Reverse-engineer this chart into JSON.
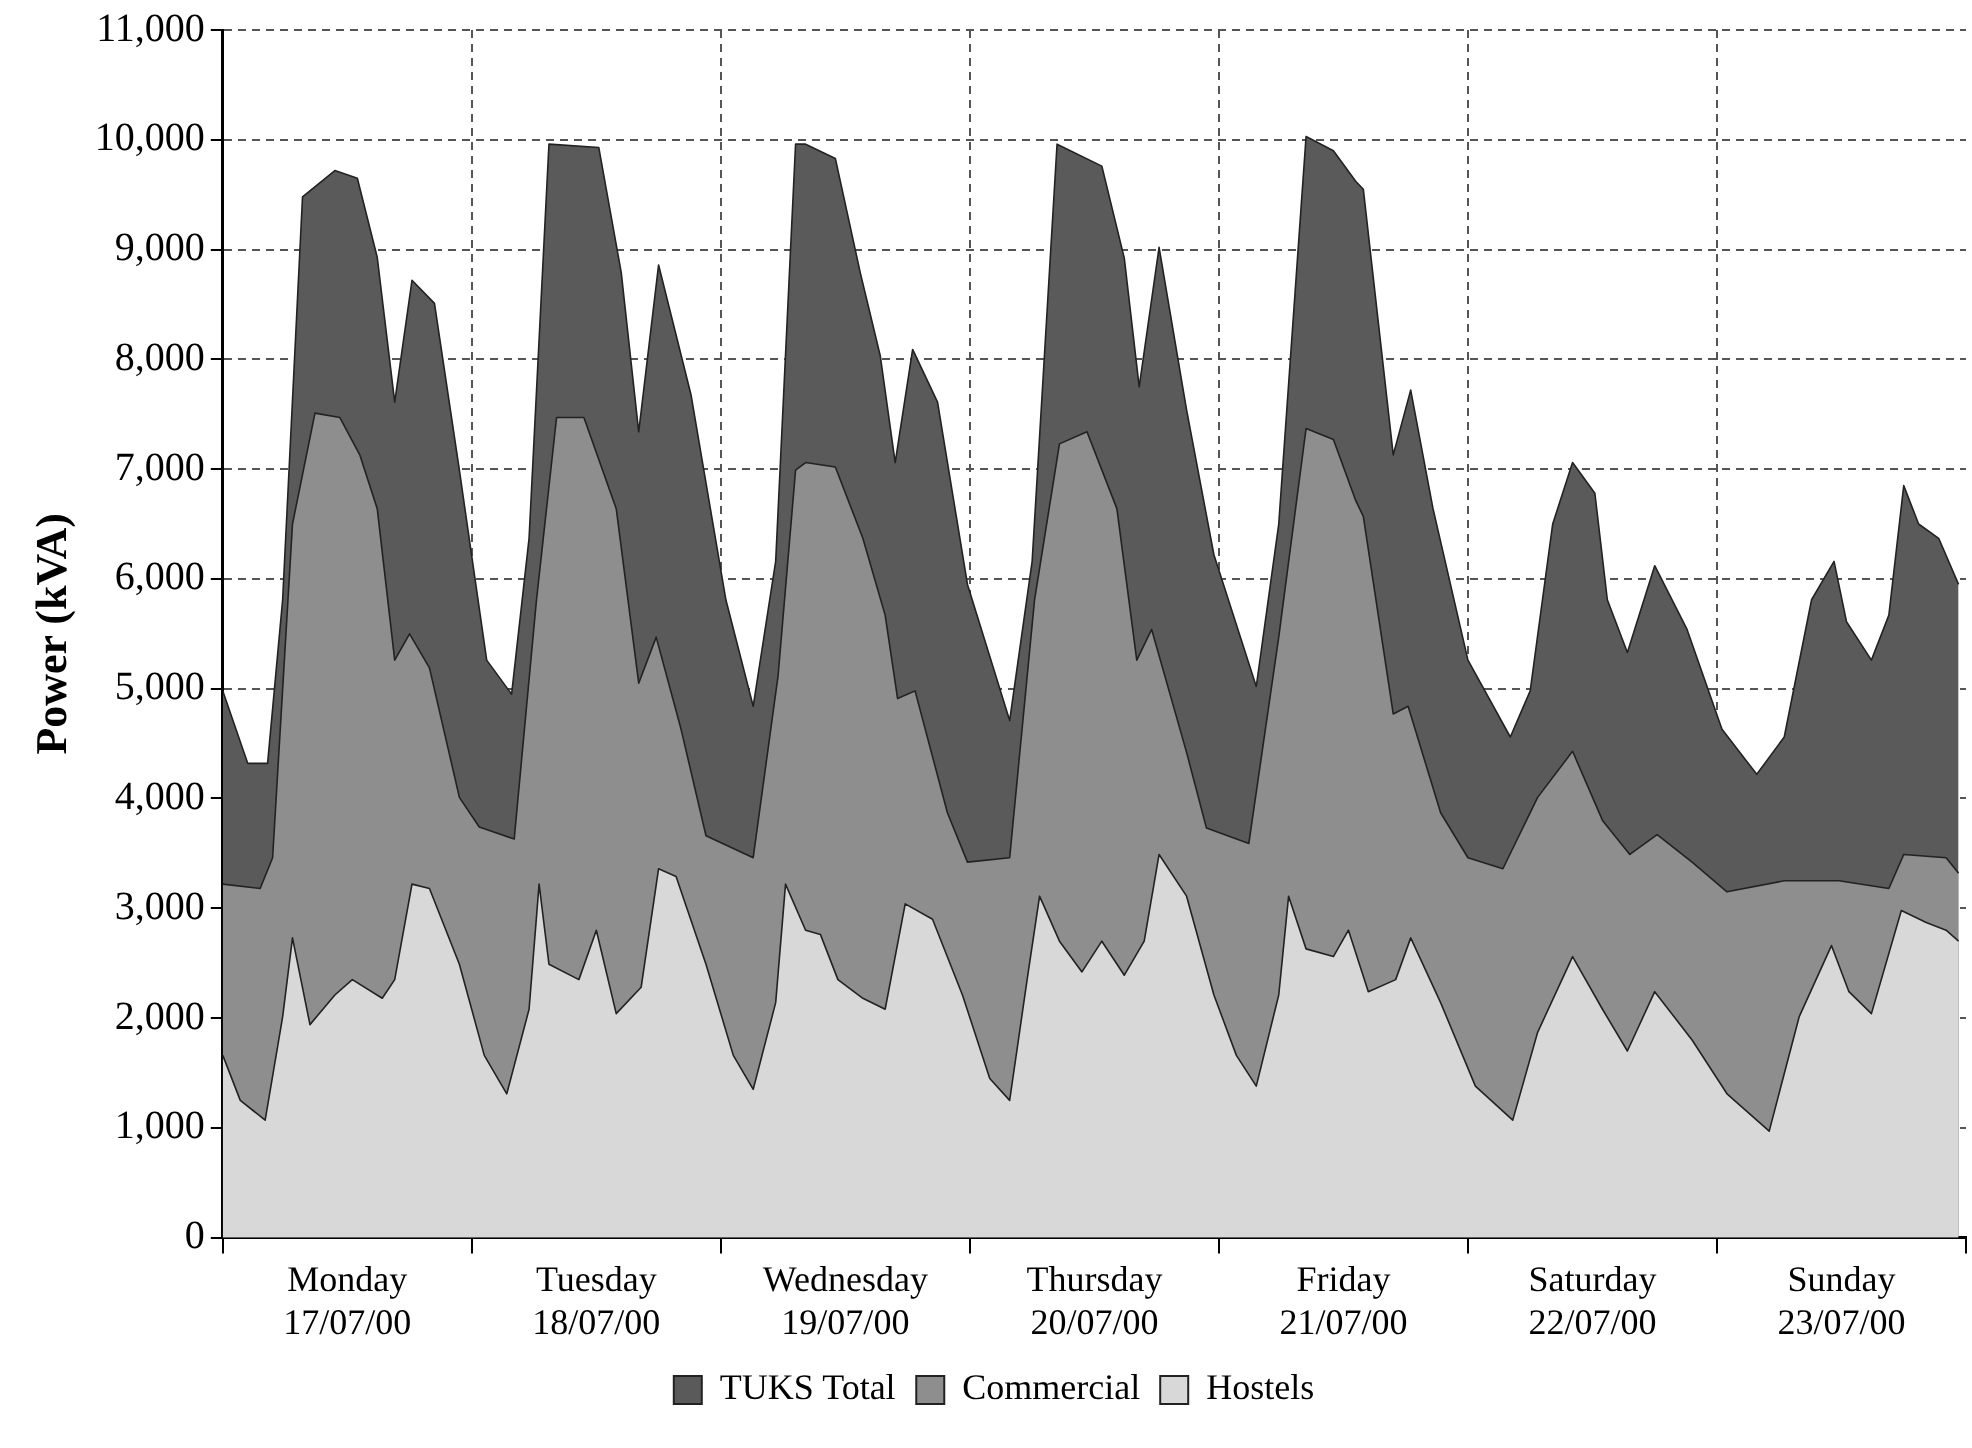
{
  "chart_data": {
    "type": "area",
    "ylabel": "Power (kVA)",
    "xlim": [
      "2000-07-17T00:00",
      "2000-07-24T00:00"
    ],
    "xticks": [
      {
        "value": "2000-07-17T00:00",
        "label": null
      },
      {
        "value": "2000-07-17T12:00",
        "label": "Monday 17/07/00"
      },
      {
        "value": "2000-07-18T00:00",
        "label": null
      },
      {
        "value": "2000-07-18T12:00",
        "label": "Tuesday 18/07/00"
      },
      {
        "value": "2000-07-19T00:00",
        "label": null
      },
      {
        "value": "2000-07-19T12:00",
        "label": "Wednesday 19/07/00"
      },
      {
        "value": "2000-07-20T00:00",
        "label": null
      },
      {
        "value": "2000-07-20T12:00",
        "label": "Thursday 20/07/00"
      },
      {
        "value": "2000-07-21T00:00",
        "label": null
      },
      {
        "value": "2000-07-21T12:00",
        "label": "Friday 21/07/00"
      },
      {
        "value": "2000-07-22T00:00",
        "label": null
      },
      {
        "value": "2000-07-22T12:00",
        "label": "Saturday 22/07/00"
      },
      {
        "value": "2000-07-23T00:00",
        "label": null
      },
      {
        "value": "2000-07-23T12:00",
        "label": "Sunday 23/07/00"
      },
      {
        "value": "2000-07-24T00:00",
        "label": null
      }
    ],
    "ylim": [
      0,
      11000
    ],
    "yticks": [
      {
        "value": 0,
        "label": "0"
      },
      {
        "value": 1000,
        "label": "1,000"
      },
      {
        "value": 2000,
        "label": "2,000"
      },
      {
        "value": 3000,
        "label": "3,000"
      },
      {
        "value": 4000,
        "label": "4,000"
      },
      {
        "value": 5000,
        "label": "5,000"
      },
      {
        "value": 6000,
        "label": "6,000"
      },
      {
        "value": 7000,
        "label": "7,000"
      },
      {
        "value": 8000,
        "label": "8,000"
      },
      {
        "value": 9000,
        "label": "9,000"
      },
      {
        "value": 10000,
        "label": "10,000"
      },
      {
        "value": 11000,
        "label": "11,000"
      }
    ],
    "grid": true,
    "legend": "bottom",
    "series": [
      {
        "name": "TUKS Total",
        "color": "#5a5a5a",
        "x": [
          "2000-07-17T00:00",
          "2000-07-17T02:24",
          "2000-07-17T04:19",
          "2000-07-17T05:46",
          "2000-07-17T07:41",
          "2000-07-17T10:48",
          "2000-07-17T12:58",
          "2000-07-17T14:53",
          "2000-07-17T16:34",
          "2000-07-17T18:14",
          "2000-07-17T20:24",
          "2000-07-17T22:48",
          "2000-07-18T01:26",
          "2000-07-18T03:50",
          "2000-07-18T05:31",
          "2000-07-18T07:26",
          "2000-07-18T12:14",
          "2000-07-18T14:24",
          "2000-07-18T16:05",
          "2000-07-18T18:00",
          "2000-07-18T21:07",
          "2000-07-19T00:29",
          "2000-07-19T03:07",
          "2000-07-19T05:17",
          "2000-07-19T07:12",
          "2000-07-19T08:10",
          "2000-07-19T11:02",
          "2000-07-19T13:26",
          "2000-07-19T15:22",
          "2000-07-19T16:48",
          "2000-07-19T18:29",
          "2000-07-19T20:53",
          "2000-07-19T23:46",
          "2000-07-20T03:50",
          "2000-07-20T06:00",
          "2000-07-20T08:24",
          "2000-07-20T12:43",
          "2000-07-20T14:53",
          "2000-07-20T16:19",
          "2000-07-20T18:14",
          "2000-07-20T20:53",
          "2000-07-20T23:31",
          "2000-07-21T03:36",
          "2000-07-21T05:46",
          "2000-07-21T08:24",
          "2000-07-21T11:02",
          "2000-07-21T13:12",
          "2000-07-21T13:55",
          "2000-07-21T16:48",
          "2000-07-21T18:29",
          "2000-07-21T20:38",
          "2000-07-22T00:00",
          "2000-07-22T04:05",
          "2000-07-22T06:00",
          "2000-07-22T08:10",
          "2000-07-22T10:05",
          "2000-07-22T12:14",
          "2000-07-22T13:26",
          "2000-07-22T15:22",
          "2000-07-22T18:00",
          "2000-07-22T21:07",
          "2000-07-23T00:29",
          "2000-07-23T03:50",
          "2000-07-23T06:29",
          "2000-07-23T09:07",
          "2000-07-23T11:17",
          "2000-07-23T12:29",
          "2000-07-23T14:53",
          "2000-07-23T16:34",
          "2000-07-23T18:00",
          "2000-07-23T19:26",
          "2000-07-23T21:22",
          "2000-07-23T23:17"
        ],
        "values": [
          4980,
          4320,
          4320,
          5810,
          9480,
          9720,
          9650,
          8930,
          7610,
          8720,
          8510,
          6990,
          5260,
          4950,
          6370,
          9960,
          9930,
          8790,
          7340,
          8860,
          7680,
          5810,
          4840,
          6160,
          9960,
          9960,
          9830,
          8790,
          8030,
          7060,
          8090,
          7610,
          5950,
          4710,
          6160,
          9960,
          9760,
          8920,
          7750,
          9020,
          7540,
          6220,
          5020,
          6500,
          10030,
          9900,
          9620,
          9550,
          7130,
          7720,
          6640,
          5260,
          4560,
          4980,
          6500,
          7060,
          6780,
          5810,
          5330,
          6120,
          5540,
          4630,
          4220,
          4560,
          5810,
          6160,
          5610,
          5260,
          5670,
          6850,
          6500,
          6370,
          5950
        ]
      },
      {
        "name": "Commercial",
        "color": "#8e8e8e",
        "x": [
          "2000-07-17T00:00",
          "2000-07-17T03:36",
          "2000-07-17T04:48",
          "2000-07-17T06:43",
          "2000-07-17T08:53",
          "2000-07-17T11:17",
          "2000-07-17T13:12",
          "2000-07-17T14:53",
          "2000-07-17T16:34",
          "2000-07-17T18:00",
          "2000-07-17T19:55",
          "2000-07-17T22:48",
          "2000-07-18T00:43",
          "2000-07-18T04:05",
          "2000-07-18T06:14",
          "2000-07-18T08:10",
          "2000-07-18T10:48",
          "2000-07-18T13:55",
          "2000-07-18T16:05",
          "2000-07-18T17:46",
          "2000-07-18T20:10",
          "2000-07-18T22:34",
          "2000-07-19T03:07",
          "2000-07-19T05:31",
          "2000-07-19T07:12",
          "2000-07-19T08:10",
          "2000-07-19T11:02",
          "2000-07-19T13:41",
          "2000-07-19T15:50",
          "2000-07-19T17:02",
          "2000-07-19T18:43",
          "2000-07-19T21:50",
          "2000-07-19T23:46",
          "2000-07-20T03:50",
          "2000-07-20T06:14",
          "2000-07-20T08:38",
          "2000-07-20T11:17",
          "2000-07-20T14:10",
          "2000-07-20T16:05",
          "2000-07-20T17:31",
          "2000-07-20T20:53",
          "2000-07-20T22:48",
          "2000-07-21T02:53",
          "2000-07-21T05:46",
          "2000-07-21T08:24",
          "2000-07-21T11:02",
          "2000-07-21T13:12",
          "2000-07-21T13:55",
          "2000-07-21T16:48",
          "2000-07-21T18:14",
          "2000-07-21T21:22",
          "2000-07-22T00:00",
          "2000-07-22T03:22",
          "2000-07-22T06:43",
          "2000-07-22T10:05",
          "2000-07-22T12:58",
          "2000-07-22T15:36",
          "2000-07-22T18:14",
          "2000-07-22T21:36",
          "2000-07-23T00:58",
          "2000-07-23T06:29",
          "2000-07-23T11:46",
          "2000-07-23T16:34",
          "2000-07-23T18:00",
          "2000-07-23T22:05",
          "2000-07-23T23:17"
        ],
        "values": [
          3220,
          3180,
          3460,
          6500,
          7510,
          7470,
          7130,
          6640,
          5260,
          5500,
          5190,
          4010,
          3740,
          3630,
          5810,
          7470,
          7470,
          6640,
          5050,
          5470,
          4630,
          3660,
          3460,
          5120,
          6990,
          7060,
          7020,
          6370,
          5670,
          4910,
          4980,
          3870,
          3420,
          3460,
          5810,
          7230,
          7340,
          6640,
          5260,
          5540,
          4420,
          3730,
          3590,
          5470,
          7370,
          7270,
          6710,
          6570,
          4770,
          4840,
          3870,
          3460,
          3360,
          4010,
          4430,
          3800,
          3490,
          3670,
          3420,
          3150,
          3250,
          3250,
          3180,
          3490,
          3460,
          3320
        ]
      },
      {
        "name": "Hostels",
        "color": "#d8d8d8",
        "x": [
          "2000-07-17T00:00",
          "2000-07-17T01:41",
          "2000-07-17T04:05",
          "2000-07-17T05:46",
          "2000-07-17T06:43",
          "2000-07-17T08:24",
          "2000-07-17T10:48",
          "2000-07-17T12:29",
          "2000-07-17T15:22",
          "2000-07-17T16:34",
          "2000-07-17T18:14",
          "2000-07-17T19:55",
          "2000-07-17T22:48",
          "2000-07-18T01:12",
          "2000-07-18T03:22",
          "2000-07-18T05:31",
          "2000-07-18T06:29",
          "2000-07-18T07:26",
          "2000-07-18T10:19",
          "2000-07-18T12:00",
          "2000-07-18T13:55",
          "2000-07-18T16:19",
          "2000-07-18T18:00",
          "2000-07-18T19:41",
          "2000-07-18T22:34",
          "2000-07-19T01:12",
          "2000-07-19T03:07",
          "2000-07-19T05:17",
          "2000-07-19T06:14",
          "2000-07-19T08:10",
          "2000-07-19T09:36",
          "2000-07-19T11:17",
          "2000-07-19T13:41",
          "2000-07-19T15:50",
          "2000-07-19T17:46",
          "2000-07-19T20:24",
          "2000-07-19T23:17",
          "2000-07-20T01:55",
          "2000-07-20T03:50",
          "2000-07-20T05:31",
          "2000-07-20T06:43",
          "2000-07-20T08:38",
          "2000-07-20T10:48",
          "2000-07-20T12:43",
          "2000-07-20T14:53",
          "2000-07-20T16:48",
          "2000-07-20T18:14",
          "2000-07-20T20:53",
          "2000-07-20T23:31",
          "2000-07-21T01:41",
          "2000-07-21T03:36",
          "2000-07-21T05:46",
          "2000-07-21T06:43",
          "2000-07-21T08:24",
          "2000-07-21T11:02",
          "2000-07-21T12:29",
          "2000-07-21T14:24",
          "2000-07-21T17:02",
          "2000-07-21T18:29",
          "2000-07-21T21:22",
          "2000-07-22T00:43",
          "2000-07-22T04:19",
          "2000-07-22T06:43",
          "2000-07-22T10:05",
          "2000-07-22T12:58",
          "2000-07-22T15:22",
          "2000-07-22T18:00",
          "2000-07-22T21:36",
          "2000-07-23T00:58",
          "2000-07-23T05:02",
          "2000-07-23T07:55",
          "2000-07-23T11:02",
          "2000-07-23T12:43",
          "2000-07-23T14:53",
          "2000-07-23T17:46",
          "2000-07-23T20:10",
          "2000-07-23T22:05",
          "2000-07-23T23:17"
        ],
        "values": [
          1660,
          1250,
          1070,
          2010,
          2730,
          1940,
          2210,
          2350,
          2180,
          2350,
          3220,
          3180,
          2490,
          1660,
          1310,
          2080,
          3220,
          2490,
          2350,
          2800,
          2040,
          2280,
          3360,
          3290,
          2490,
          1660,
          1350,
          2140,
          3220,
          2800,
          2760,
          2350,
          2180,
          2080,
          3040,
          2900,
          2210,
          1450,
          1250,
          2350,
          3110,
          2700,
          2420,
          2700,
          2390,
          2700,
          3490,
          3110,
          2210,
          1660,
          1380,
          2210,
          3110,
          2630,
          2560,
          2800,
          2240,
          2350,
          2730,
          2140,
          1380,
          1070,
          1870,
          2560,
          2080,
          1700,
          2240,
          1800,
          1310,
          970,
          2010,
          2660,
          2240,
          2040,
          2980,
          2870,
          2800,
          2700
        ]
      }
    ]
  }
}
